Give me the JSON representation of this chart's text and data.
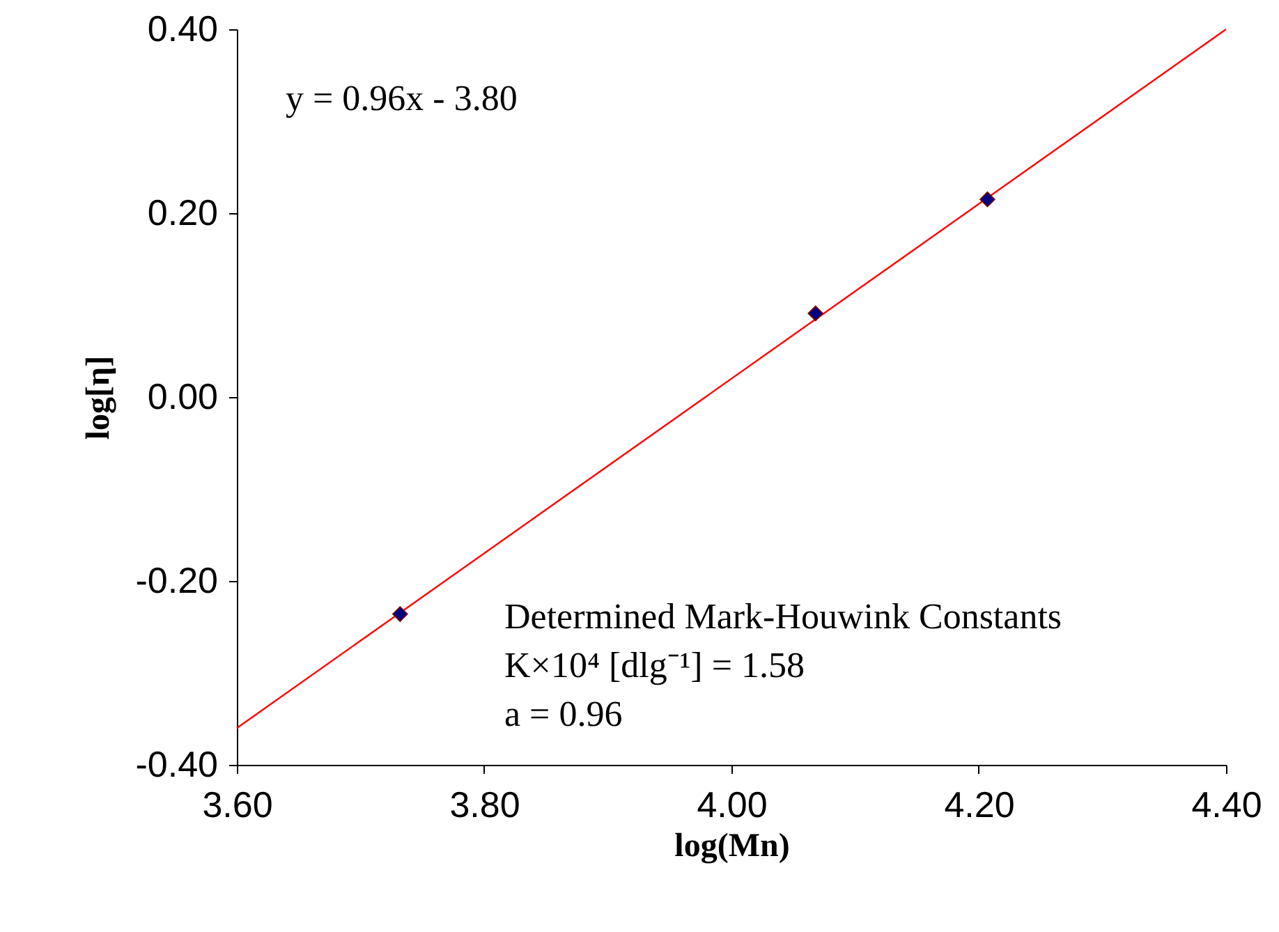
{
  "chart_data": {
    "type": "scatter",
    "xlabel": "log(Mn)",
    "ylabel": "log[η]",
    "series": [
      {
        "type": "scatter",
        "color": "#000080",
        "marker": "diamond",
        "x": [
          3.732,
          4.068,
          4.207
        ],
        "values": [
          -0.236,
          0.091,
          0.215
        ]
      },
      {
        "type": "line",
        "color": "#ff0000",
        "marker": "none",
        "x": [
          3.6,
          4.4
        ],
        "values": [
          -0.36,
          0.4
        ]
      }
    ],
    "xlim": [
      3.6,
      4.4
    ],
    "xticks": [
      {
        "value": 3.6,
        "label": "3.60"
      },
      {
        "value": 3.8,
        "label": "3.80"
      },
      {
        "value": 4.0,
        "label": "4.00"
      },
      {
        "value": 4.2,
        "label": "4.20"
      },
      {
        "value": 4.4,
        "label": "4.40"
      }
    ],
    "ylim": [
      -0.4,
      0.4
    ],
    "yticks": [
      {
        "value": -0.4,
        "label": "-0.40"
      },
      {
        "value": -0.2,
        "label": "-0.20"
      },
      {
        "value": 0.0,
        "label": "0.00"
      },
      {
        "value": 0.2,
        "label": "0.20"
      },
      {
        "value": 0.4,
        "label": "0.40"
      }
    ],
    "grid": false,
    "legend": false,
    "annotations": [
      "y = 0.96x - 3.80",
      "Determined Mark-Houwink Constants",
      "K×10⁴ [dlg⁻¹] = 1.58",
      "a = 0.96"
    ]
  }
}
